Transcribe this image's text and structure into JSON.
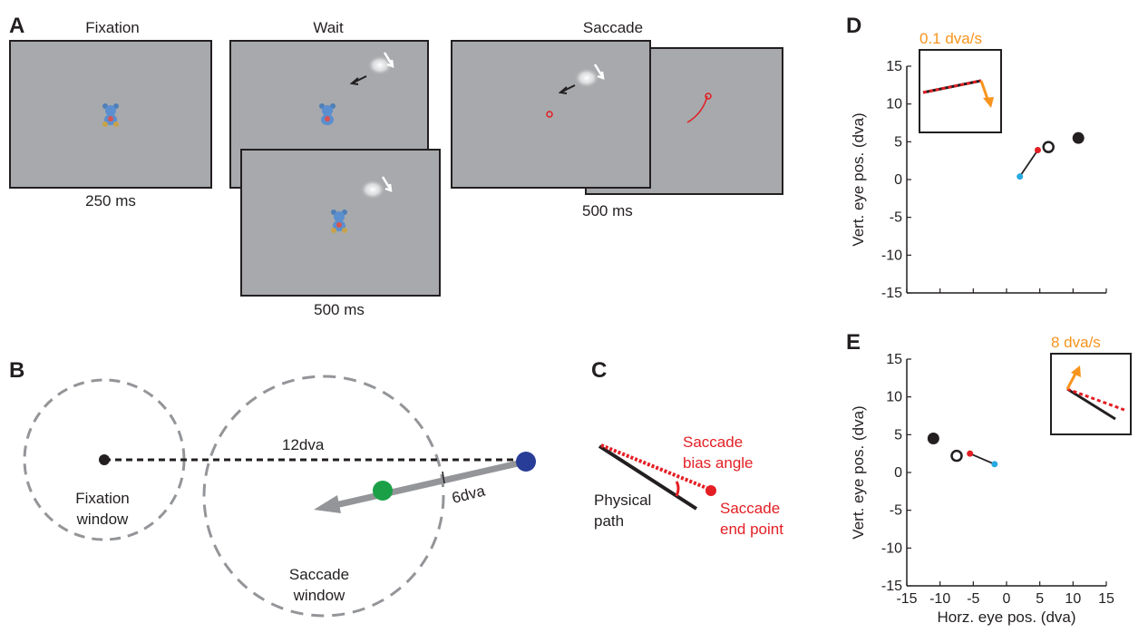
{
  "panel_a": {
    "letter": "A",
    "fixation_title": "Fixation",
    "wait_title": "Wait",
    "saccade_title": "Saccade",
    "fixation_duration": "250 ms",
    "wait_duration": "500 ms",
    "saccade_duration": "500 ms"
  },
  "panel_b": {
    "letter": "B",
    "distance_label": "12dva",
    "radius_label": "6dva",
    "fixation_window_line1": "Fixation",
    "fixation_window_line2": "window",
    "saccade_window_line1": "Saccade",
    "saccade_window_line2": "window"
  },
  "panel_c": {
    "letter": "C",
    "bias_line1": "Saccade",
    "bias_line2": "bias angle",
    "endpoint_line1": "Saccade",
    "endpoint_line2": "end point",
    "path_line1": "Physical",
    "path_line2": "path"
  },
  "chart_data": [
    {
      "type": "scatter",
      "panel": "D",
      "inset_label": "0.1 dva/s",
      "xlim": [
        -15,
        15
      ],
      "ylim": [
        -15,
        15
      ],
      "xticks": [
        -15,
        -10,
        -5,
        0,
        5,
        10,
        15
      ],
      "yticks": [
        "15",
        "10",
        "5",
        "0",
        "-5",
        "-10",
        "-15"
      ],
      "xlabel": "",
      "ylabel": "Vert. eye pos. (dva)",
      "saccade_start": [
        2,
        0.4
      ],
      "saccade_end": [
        4.7,
        3.9
      ],
      "open_target": [
        6.3,
        4.3
      ],
      "filled_target": [
        10.8,
        5.5
      ],
      "colors": {
        "start": "#27aae1",
        "end": "#e31e24",
        "inset_arrow": "#f7941d"
      }
    },
    {
      "type": "scatter",
      "panel": "E",
      "inset_label": "8 dva/s",
      "xlim": [
        -15,
        15
      ],
      "ylim": [
        -15,
        15
      ],
      "xticks": [
        "-15",
        "-10",
        "-5",
        "0",
        "5",
        "10",
        "15"
      ],
      "yticks": [
        "15",
        "10",
        "5",
        "0",
        "-5",
        "-10",
        "-15"
      ],
      "xlabel": "Horz. eye pos. (dva)",
      "ylabel": "Vert. eye pos. (dva)",
      "saccade_start": [
        -1.8,
        1.1
      ],
      "saccade_end": [
        -5.5,
        2.5
      ],
      "open_target": [
        -7.5,
        2.2
      ],
      "filled_target": [
        -11,
        4.5
      ],
      "colors": {
        "start": "#27aae1",
        "end": "#e31e24",
        "inset_arrow": "#f7941d"
      }
    }
  ]
}
